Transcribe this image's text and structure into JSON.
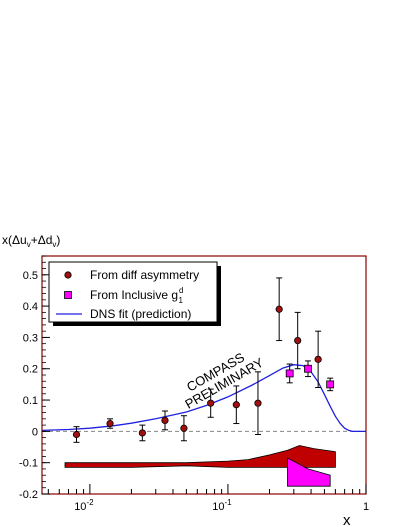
{
  "chart_data": {
    "type": "scatter",
    "ylabel": "x(Δu_v+Δd_v)",
    "xlabel": "x",
    "x_scale": "log",
    "xlim": [
      0.0045,
      1.0
    ],
    "ylim": [
      -0.2,
      0.56
    ],
    "x_ticks": [
      {
        "value": 0.01,
        "mantissa": "10",
        "exp": "-2"
      },
      {
        "value": 0.1,
        "mantissa": "10",
        "exp": "-1"
      },
      {
        "value": 1,
        "mantissa": "1",
        "exp": ""
      }
    ],
    "y_ticks": [
      "-0.2",
      "-0.1",
      "0",
      "0.1",
      "0.2",
      "0.3",
      "0.4",
      "0.5"
    ],
    "watermark": [
      "COMPASS",
      "PRELIMINARY"
    ],
    "legend": {
      "position": "top-left",
      "entries": [
        {
          "label": "From diff asymmetry",
          "marker": "circle"
        },
        {
          "label": "From Inclusive g",
          "sup": "d",
          "sub": "1",
          "marker": "square"
        },
        {
          "label": "DNS fit (prediction)",
          "marker": "line"
        }
      ]
    },
    "colors": {
      "frame": "#8b0000",
      "marker_circle": "#a01010",
      "marker_square": "#ff00ff",
      "fit": "#2020e0",
      "sys_band_diff": "#c00000",
      "sys_band_incl": "#ff00ff"
    },
    "series": [
      {
        "name": "From diff asymmetry",
        "marker": "circle",
        "points": [
          {
            "x": 0.008,
            "y": -0.01,
            "err": 0.025
          },
          {
            "x": 0.014,
            "y": 0.025,
            "err": 0.015
          },
          {
            "x": 0.024,
            "y": -0.005,
            "err": 0.025
          },
          {
            "x": 0.035,
            "y": 0.035,
            "err": 0.03
          },
          {
            "x": 0.048,
            "y": 0.01,
            "err": 0.04
          },
          {
            "x": 0.075,
            "y": 0.09,
            "err": 0.045
          },
          {
            "x": 0.115,
            "y": 0.085,
            "err": 0.06
          },
          {
            "x": 0.165,
            "y": 0.09,
            "err": 0.1
          },
          {
            "x": 0.235,
            "y": 0.39,
            "err": 0.1
          },
          {
            "x": 0.32,
            "y": 0.29,
            "err": 0.09
          },
          {
            "x": 0.45,
            "y": 0.23,
            "err": 0.09
          }
        ]
      },
      {
        "name": "From Inclusive g1d",
        "marker": "square",
        "points": [
          {
            "x": 0.28,
            "y": 0.185,
            "err": 0.03
          },
          {
            "x": 0.38,
            "y": 0.2,
            "err": 0.025
          },
          {
            "x": 0.55,
            "y": 0.15,
            "err": 0.02
          }
        ]
      },
      {
        "name": "DNS fit (prediction)",
        "type": "line",
        "x": [
          0.0045,
          0.007,
          0.01,
          0.015,
          0.02,
          0.03,
          0.05,
          0.07,
          0.1,
          0.15,
          0.2,
          0.25,
          0.3,
          0.35,
          0.4,
          0.45,
          0.5,
          0.55,
          0.6,
          0.65,
          0.7,
          0.75,
          0.8,
          0.85,
          0.9,
          0.95,
          1.0
        ],
        "y": [
          0.003,
          0.006,
          0.01,
          0.018,
          0.026,
          0.04,
          0.062,
          0.083,
          0.11,
          0.148,
          0.178,
          0.202,
          0.213,
          0.21,
          0.19,
          0.158,
          0.118,
          0.08,
          0.048,
          0.025,
          0.01,
          0.003,
          0.0,
          0.0,
          0.0,
          0.0,
          0.0
        ]
      }
    ],
    "systematic_bands": [
      {
        "name": "diff asymmetry systematics",
        "x": [
          0.0066,
          0.02,
          0.05,
          0.1,
          0.14,
          0.2,
          0.27,
          0.33,
          0.42,
          0.6
        ],
        "upper": [
          -0.1,
          -0.1,
          -0.1,
          -0.095,
          -0.09,
          -0.075,
          -0.06,
          -0.045,
          -0.055,
          -0.065
        ],
        "lower": [
          -0.115,
          -0.115,
          -0.11,
          -0.115,
          -0.115,
          -0.115,
          -0.115,
          -0.115,
          -0.115,
          -0.115
        ]
      },
      {
        "name": "inclusive systematics",
        "x": [
          0.27,
          0.27,
          0.38,
          0.55,
          0.55,
          0.38
        ],
        "y": [
          -0.085,
          -0.175,
          -0.175,
          -0.175,
          -0.14,
          -0.12
        ]
      }
    ]
  }
}
